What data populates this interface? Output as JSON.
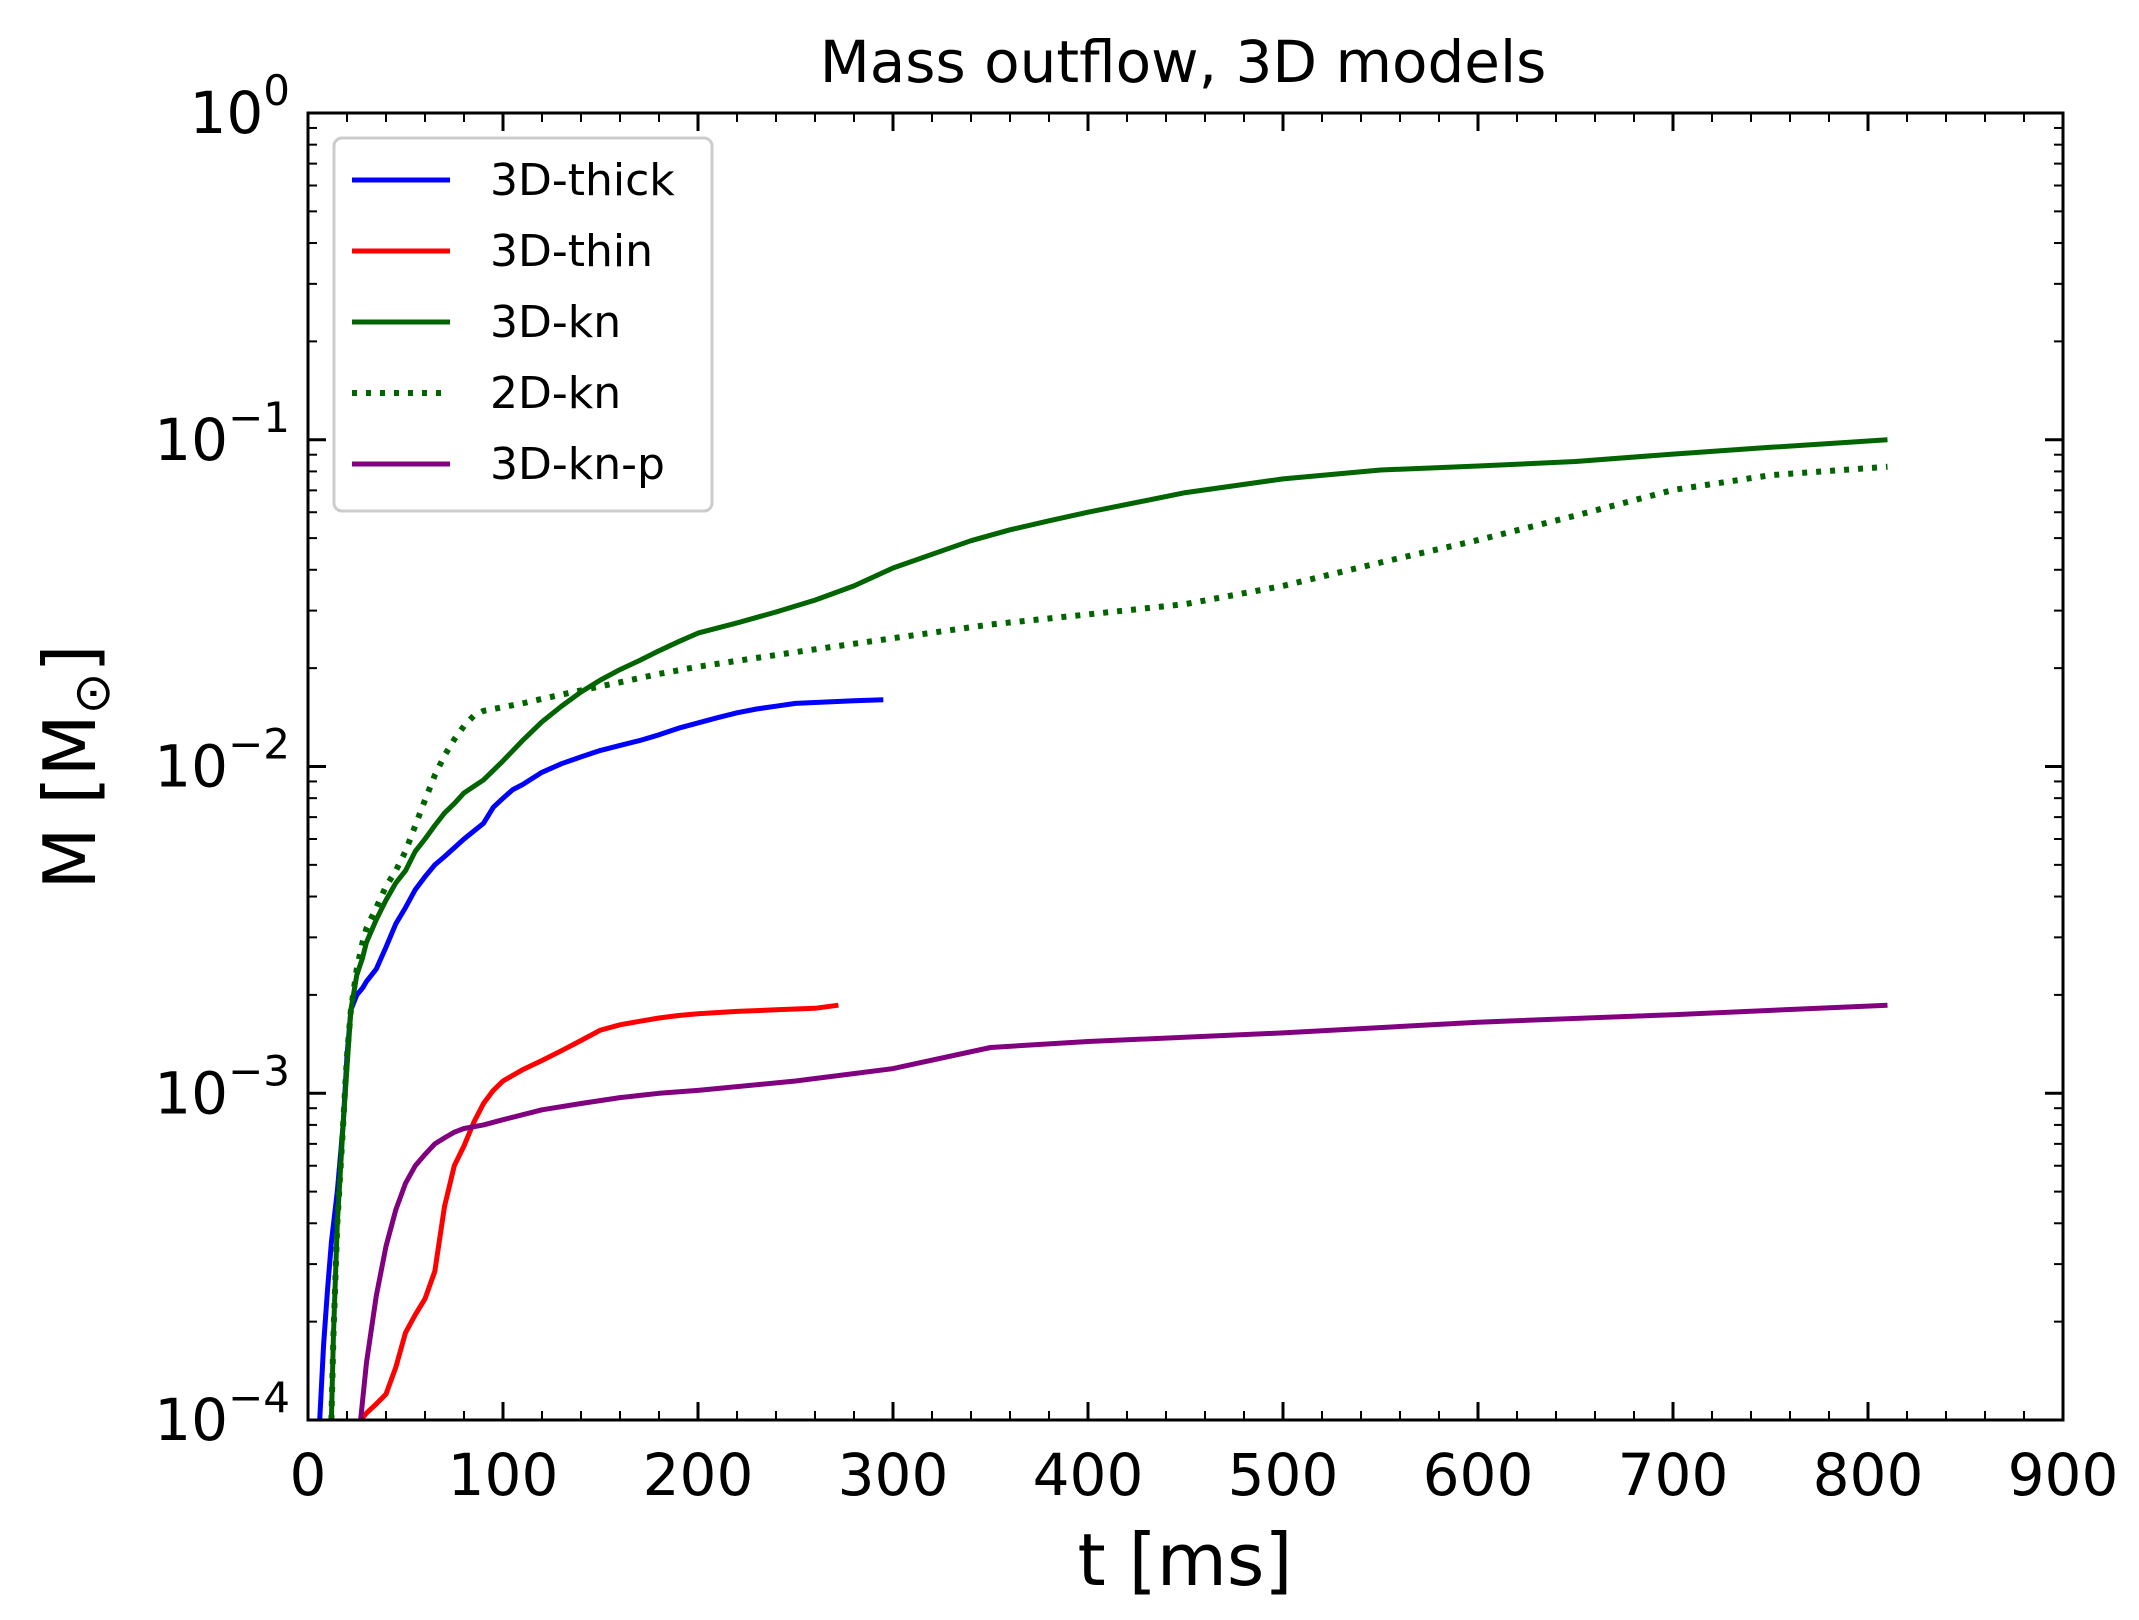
{
  "chart_data": {
    "type": "line",
    "title": "Mass outflow, 3D  models",
    "xlabel": "t [ms]",
    "ylabel_main": "M [M",
    "ylabel_sub": "⊙",
    "ylabel_end": "]",
    "xlim": [
      0,
      900
    ],
    "ylim": [
      0.0001,
      1
    ],
    "yscale": "log",
    "x_ticks": [
      0,
      100,
      200,
      300,
      400,
      500,
      600,
      700,
      800,
      900
    ],
    "x_tick_labels": [
      "0",
      "100",
      "200",
      "300",
      "400",
      "500",
      "600",
      "700",
      "800",
      "900"
    ],
    "y_ticks": [
      {
        "value": 1,
        "base": "10",
        "exp": "0"
      },
      {
        "value": 0.1,
        "base": "10",
        "exp": "−1"
      },
      {
        "value": 0.01,
        "base": "10",
        "exp": "−2"
      },
      {
        "value": 0.001,
        "base": "10",
        "exp": "−3"
      },
      {
        "value": 0.0001,
        "base": "10",
        "exp": "−4"
      }
    ],
    "legend_position": "upper-left",
    "series": [
      {
        "name": "3D-thick",
        "color": "#0000ff",
        "style": "solid",
        "x": [
          6,
          8,
          10,
          12,
          15,
          18,
          20,
          22,
          25,
          28,
          30,
          35,
          40,
          45,
          50,
          55,
          60,
          65,
          70,
          80,
          90,
          95,
          100,
          105,
          110,
          120,
          130,
          140,
          150,
          160,
          170,
          180,
          190,
          200,
          210,
          220,
          230,
          240,
          250,
          260,
          270,
          280,
          295
        ],
        "y": [
          0.0001,
          0.00017,
          0.00025,
          0.00035,
          0.0005,
          0.0008,
          0.0013,
          0.0018,
          0.002,
          0.0021,
          0.0022,
          0.0024,
          0.0028,
          0.0033,
          0.0037,
          0.0042,
          0.0046,
          0.005,
          0.0053,
          0.006,
          0.0067,
          0.0075,
          0.008,
          0.0085,
          0.0088,
          0.0096,
          0.0102,
          0.0107,
          0.0112,
          0.0116,
          0.012,
          0.0125,
          0.0131,
          0.0136,
          0.0141,
          0.0146,
          0.015,
          0.0153,
          0.0156,
          0.0157,
          0.0158,
          0.0159,
          0.016
        ]
      },
      {
        "name": "3D-thin",
        "color": "#ff0000",
        "style": "solid",
        "x": [
          27,
          30,
          35,
          40,
          45,
          50,
          55,
          60,
          65,
          70,
          75,
          80,
          85,
          90,
          95,
          100,
          110,
          120,
          130,
          140,
          150,
          160,
          170,
          180,
          190,
          200,
          220,
          240,
          260,
          272
        ],
        "y": [
          0.0001,
          0.000105,
          0.000112,
          0.00012,
          0.000145,
          0.000185,
          0.00021,
          0.000235,
          0.000285,
          0.00045,
          0.0006,
          0.00069,
          0.000815,
          0.00093,
          0.00102,
          0.00109,
          0.00118,
          0.00126,
          0.00135,
          0.00145,
          0.00156,
          0.00162,
          0.00166,
          0.0017,
          0.00173,
          0.00175,
          0.00178,
          0.0018,
          0.00182,
          0.00186
        ]
      },
      {
        "name": "3D-kn",
        "color": "#006400",
        "style": "solid",
        "x": [
          12,
          13,
          15,
          18,
          20,
          22,
          25,
          28,
          30,
          35,
          40,
          45,
          50,
          55,
          60,
          65,
          70,
          75,
          80,
          90,
          100,
          110,
          120,
          130,
          140,
          150,
          160,
          170,
          180,
          190,
          200,
          220,
          240,
          260,
          280,
          300,
          320,
          340,
          360,
          380,
          400,
          450,
          500,
          550,
          600,
          650,
          700,
          750,
          810
        ],
        "y": [
          0.0001,
          0.00018,
          0.0004,
          0.0008,
          0.0012,
          0.0018,
          0.0023,
          0.0026,
          0.0029,
          0.0034,
          0.0039,
          0.0044,
          0.0048,
          0.0055,
          0.006,
          0.0066,
          0.0072,
          0.0077,
          0.0083,
          0.0091,
          0.0104,
          0.012,
          0.0137,
          0.0153,
          0.0169,
          0.0184,
          0.0198,
          0.0211,
          0.0226,
          0.0241,
          0.0256,
          0.0275,
          0.0297,
          0.0323,
          0.0357,
          0.0405,
          0.0446,
          0.0491,
          0.053,
          0.0565,
          0.06,
          0.0689,
          0.0759,
          0.0808,
          0.0831,
          0.0858,
          0.0904,
          0.0948,
          0.1
        ]
      },
      {
        "name": "2D-kn",
        "color": "#006400",
        "style": "dotted",
        "x": [
          12,
          13,
          15,
          18,
          20,
          22,
          25,
          28,
          30,
          35,
          40,
          45,
          50,
          55,
          60,
          65,
          70,
          75,
          80,
          85,
          90,
          100,
          110,
          120,
          130,
          140,
          150,
          160,
          180,
          200,
          250,
          300,
          350,
          400,
          450,
          500,
          550,
          600,
          650,
          700,
          750,
          810
        ],
        "y": [
          0.0001,
          0.00018,
          0.0004,
          0.0008,
          0.0013,
          0.0018,
          0.0024,
          0.0029,
          0.0032,
          0.0037,
          0.0043,
          0.0048,
          0.0055,
          0.0066,
          0.0079,
          0.0094,
          0.0108,
          0.0121,
          0.0133,
          0.0143,
          0.0148,
          0.0152,
          0.0156,
          0.0161,
          0.0166,
          0.0171,
          0.0176,
          0.0181,
          0.0192,
          0.0202,
          0.0224,
          0.0247,
          0.0272,
          0.0292,
          0.0314,
          0.0357,
          0.0421,
          0.0493,
          0.0586,
          0.0702,
          0.0779,
          0.0827
        ]
      },
      {
        "name": "3D-kn-p",
        "color": "#800080",
        "style": "solid",
        "x": [
          27,
          30,
          35,
          40,
          45,
          50,
          55,
          60,
          65,
          70,
          75,
          80,
          90,
          100,
          120,
          140,
          160,
          180,
          200,
          250,
          300,
          350,
          400,
          500,
          600,
          700,
          810
        ],
        "y": [
          0.0001,
          0.00015,
          0.00024,
          0.00034,
          0.00044,
          0.00053,
          0.0006,
          0.00065,
          0.0007,
          0.00073,
          0.00076,
          0.00078,
          0.0008,
          0.00083,
          0.00089,
          0.00093,
          0.00097,
          0.001,
          0.00102,
          0.00109,
          0.00119,
          0.00138,
          0.00144,
          0.00153,
          0.00165,
          0.00174,
          0.00186
        ]
      }
    ]
  }
}
